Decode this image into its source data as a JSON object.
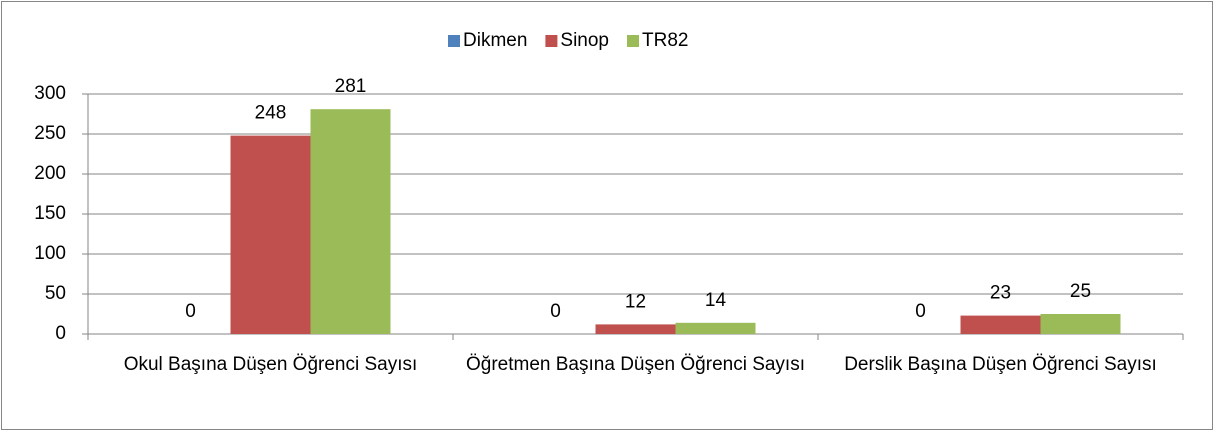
{
  "chart_data": {
    "type": "bar",
    "categories": [
      "Okul Başına Düşen Öğrenci Sayısı",
      "Öğretmen Başına Düşen Öğrenci Sayısı",
      "Derslik Başına Düşen Öğrenci Sayısı"
    ],
    "series": [
      {
        "name": "Dikmen",
        "color": "#4f81bd",
        "values": [
          0,
          0,
          0
        ]
      },
      {
        "name": "Sinop",
        "color": "#c0504d",
        "values": [
          248,
          12,
          23
        ]
      },
      {
        "name": "TR82",
        "color": "#9bbb59",
        "values": [
          281,
          14,
          25
        ]
      }
    ],
    "ylim": [
      0,
      300
    ],
    "yticks": [
      0,
      50,
      100,
      150,
      200,
      250,
      300
    ],
    "grid": true,
    "legend": "top"
  }
}
